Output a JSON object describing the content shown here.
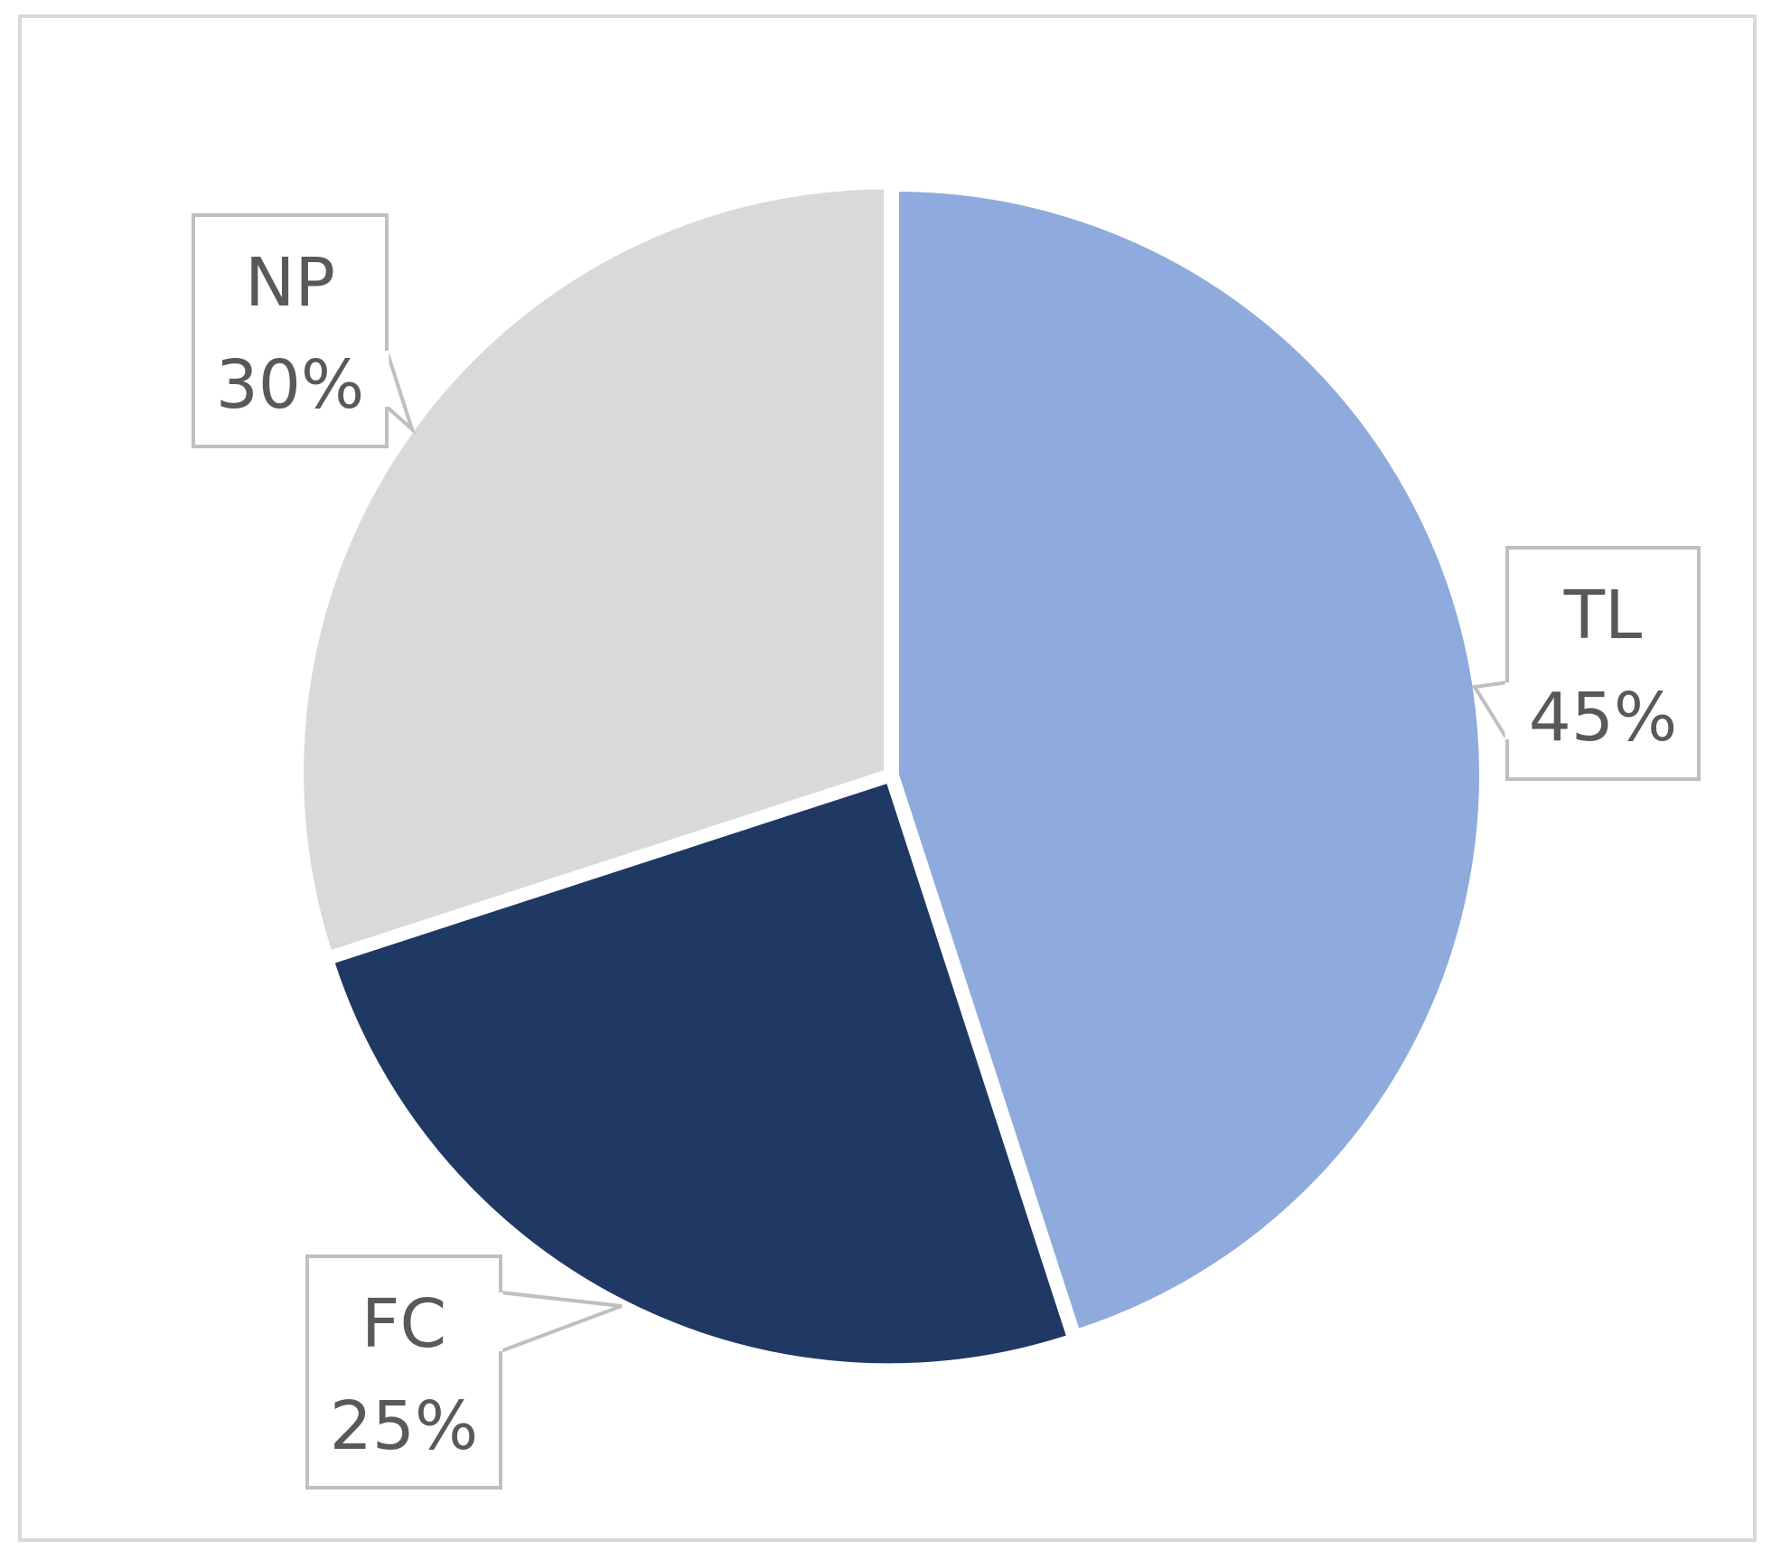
{
  "chart_data": {
    "type": "pie",
    "title": "",
    "slices": [
      {
        "name": "TL",
        "value": 45,
        "label": "45%",
        "color": "#8faadc"
      },
      {
        "name": "FC",
        "value": 25,
        "label": "25%",
        "color": "#203864"
      },
      {
        "name": "NP",
        "value": 30,
        "label": "30%",
        "color": "#d9d9d9"
      }
    ],
    "legend": "none",
    "data_labels": "callouts",
    "callout_border_color": "#bfbfbf",
    "label_text_color": "#595959"
  }
}
